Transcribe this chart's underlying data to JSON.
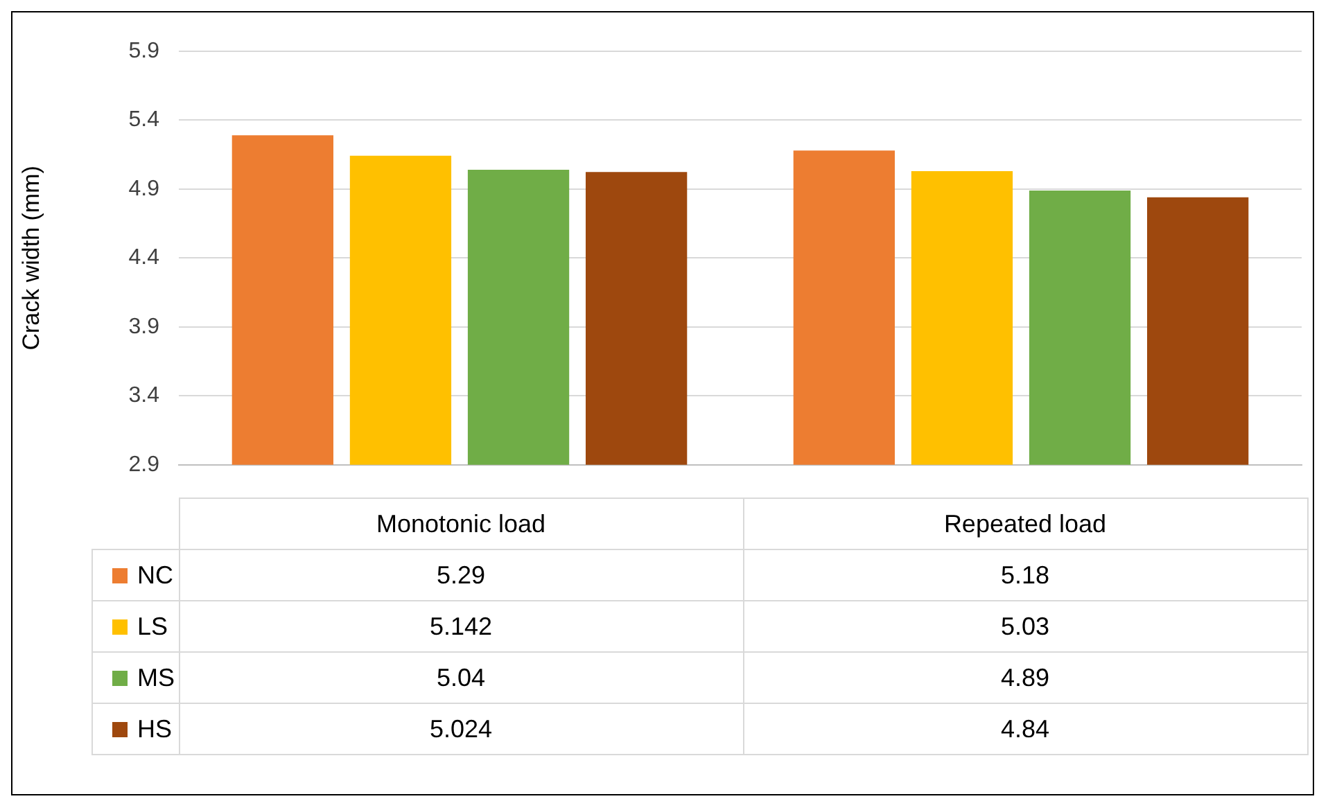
{
  "chart_data": {
    "type": "bar",
    "ylabel": "Crack width (mm)",
    "categories": [
      "Monotonic load",
      "Repeated load"
    ],
    "series": [
      {
        "name": "NC",
        "color": "#ed7d31",
        "values": [
          5.29,
          5.18
        ]
      },
      {
        "name": "LS",
        "color": "#ffc000",
        "values": [
          5.142,
          5.03
        ]
      },
      {
        "name": "MS",
        "color": "#70ad47",
        "values": [
          5.04,
          4.89
        ]
      },
      {
        "name": "HS",
        "color": "#9e480e",
        "values": [
          5.024,
          4.84
        ]
      }
    ],
    "ylim": [
      2.9,
      5.9
    ],
    "yticks": [
      2.9,
      3.4,
      3.9,
      4.4,
      4.9,
      5.4,
      5.9
    ],
    "grid": "y",
    "legend": "bottom",
    "data_labels": true
  }
}
